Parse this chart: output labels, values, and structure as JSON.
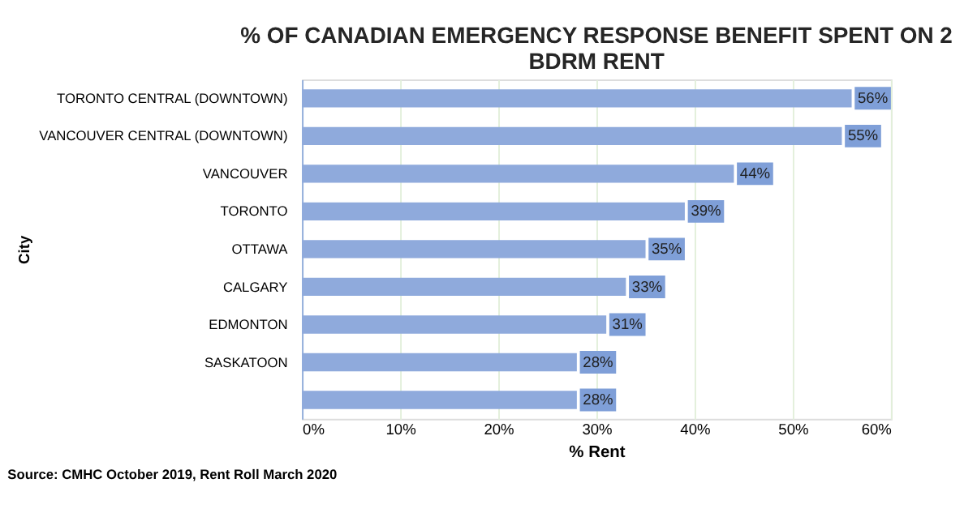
{
  "chart_data": {
    "type": "bar",
    "orientation": "horizontal",
    "title": [
      "% OF CANADIAN EMERGENCY RESPONSE BENEFIT SPENT ON 2",
      "BDRM RENT"
    ],
    "xlabel": "% Rent",
    "ylabel": "City",
    "categories": [
      "TORONTO CENTRAL (DOWNTOWN)",
      "VANCOUVER CENTRAL (DOWNTOWN)",
      "VANCOUVER",
      "TORONTO",
      "OTTAWA",
      "CALGARY",
      "EDMONTON",
      "SASKATOON",
      null
    ],
    "values": [
      56,
      55,
      44,
      39,
      35,
      33,
      31,
      28,
      28
    ],
    "value_labels": [
      "56%",
      "55%",
      "44%",
      "39%",
      "35%",
      "33%",
      "31%",
      "28%",
      "28%"
    ],
    "color": "#8faadc",
    "xlim": [
      0,
      60
    ],
    "xticks": [
      {
        "value": 0,
        "label": "0%"
      },
      {
        "value": 10,
        "label": "10%"
      },
      {
        "value": 20,
        "label": "20%"
      },
      {
        "value": 30,
        "label": "30%"
      },
      {
        "value": 40,
        "label": "40%"
      },
      {
        "value": 50,
        "label": "50%"
      },
      {
        "value": 60,
        "label": "60%"
      }
    ],
    "grid": "x",
    "annotations": [
      "Source: CMHC October 2019, Rent Roll March 2020"
    ]
  }
}
